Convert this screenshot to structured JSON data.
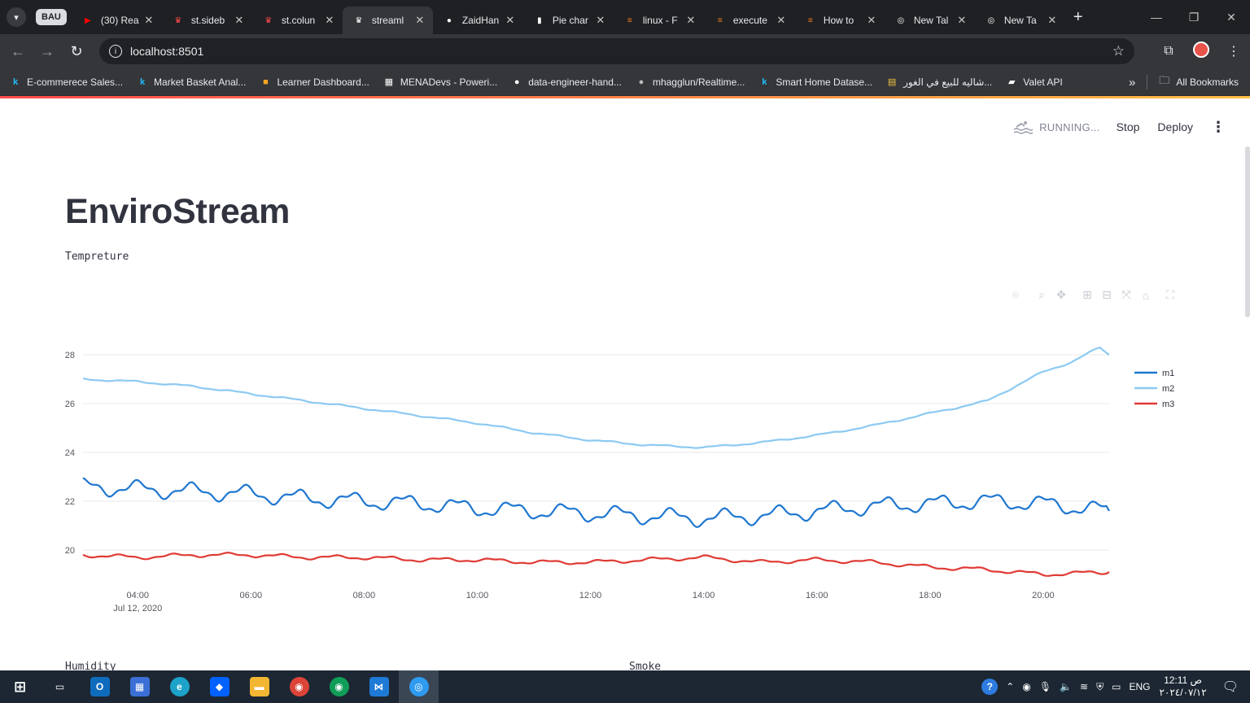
{
  "browser": {
    "group_chip": "BAU",
    "tabs": [
      {
        "label": "(30) Rea",
        "icon": "youtube-icon",
        "color": "#ff0000"
      },
      {
        "label": "st.sideb",
        "icon": "streamlit-icon",
        "color": "#ff4b4b"
      },
      {
        "label": "st.colun",
        "icon": "streamlit-icon",
        "color": "#ff4b4b"
      },
      {
        "label": "streaml",
        "icon": "streamlit-icon",
        "color": "#ffffff",
        "active": true
      },
      {
        "label": "ZaidHan",
        "icon": "github-icon",
        "color": "#ffffff"
      },
      {
        "label": "Pie char",
        "icon": "chart-icon",
        "color": "#ffffff"
      },
      {
        "label": "linux - F",
        "icon": "stackoverflow-icon",
        "color": "#f48024"
      },
      {
        "label": "execute",
        "icon": "stackoverflow-icon",
        "color": "#f48024"
      },
      {
        "label": "How to",
        "icon": "stackoverflow-icon",
        "color": "#f48024"
      },
      {
        "label": "New Tal",
        "icon": "chrome-icon",
        "color": "#ffffff"
      },
      {
        "label": "New Ta",
        "icon": "chrome-icon",
        "color": "#ffffff"
      }
    ],
    "url": "localhost:8501",
    "bookmarks": [
      {
        "label": "E-commerece Sales...",
        "icon": "kaggle-icon",
        "color": "#20beff"
      },
      {
        "label": "Market Basket Anal...",
        "icon": "kaggle-icon",
        "color": "#20beff"
      },
      {
        "label": "Learner Dashboard...",
        "icon": "box-icon",
        "color": "#f5a623"
      },
      {
        "label": "MENADevs - Poweri...",
        "icon": "menadevs-icon",
        "color": "#ffffff"
      },
      {
        "label": "data-engineer-hand...",
        "icon": "github-icon",
        "color": "#ffffff"
      },
      {
        "label": "mhagglun/Realtime...",
        "icon": "github-icon",
        "color": "#bbbbbb"
      },
      {
        "label": "Smart Home Datase...",
        "icon": "kaggle-icon",
        "color": "#20beff"
      },
      {
        "label": "شاليه للبيع في الغور...",
        "icon": "listing-icon",
        "color": "#f5c542"
      },
      {
        "label": "Valet API",
        "icon": "car-icon",
        "color": "#ffffff"
      }
    ],
    "all_bookmarks": "All Bookmarks"
  },
  "app": {
    "status": "RUNNING...",
    "stop": "Stop",
    "deploy": "Deploy",
    "title": "EnviroStream",
    "subtitle": "Tempreture",
    "next_sections": [
      "Humidity",
      "Smoke"
    ]
  },
  "chart_data": {
    "type": "line",
    "title": "",
    "xlabel": "",
    "ylabel": "",
    "x_range": [
      "2020-07-12T03:02",
      "2020-07-12T21:10"
    ],
    "ylim": [
      18.6,
      28.6
    ],
    "x_ticks": [
      "04:00",
      "06:00",
      "08:00",
      "10:00",
      "12:00",
      "14:00",
      "16:00",
      "18:00",
      "20:00"
    ],
    "x_tick_sub": "Jul 12, 2020",
    "y_ticks": [
      20,
      22,
      24,
      26,
      28
    ],
    "grid": true,
    "legend": "right",
    "series": [
      {
        "name": "m1",
        "color": "#1f77d0",
        "x": [
          "03:02",
          "04:00",
          "05:00",
          "06:00",
          "07:00",
          "08:00",
          "09:00",
          "10:00",
          "11:00",
          "12:00",
          "13:00",
          "14:00",
          "15:00",
          "16:00",
          "17:00",
          "18:00",
          "19:00",
          "20:00",
          "21:10"
        ],
        "y": [
          22.6,
          22.5,
          22.4,
          22.3,
          22.1,
          22.0,
          21.9,
          21.7,
          21.6,
          21.5,
          21.4,
          21.3,
          21.4,
          21.6,
          21.8,
          21.9,
          22.0,
          21.9,
          21.6
        ]
      },
      {
        "name": "m2",
        "color": "#8ccaf2",
        "x": [
          "03:02",
          "04:00",
          "05:00",
          "06:00",
          "07:00",
          "08:00",
          "09:00",
          "10:00",
          "11:00",
          "12:00",
          "13:00",
          "14:00",
          "15:00",
          "16:00",
          "17:00",
          "18:00",
          "19:00",
          "20:00",
          "20:30",
          "21:00",
          "21:10"
        ],
        "y": [
          27.0,
          26.9,
          26.7,
          26.4,
          26.1,
          25.8,
          25.5,
          25.2,
          24.8,
          24.5,
          24.3,
          24.2,
          24.4,
          24.7,
          25.1,
          25.6,
          26.1,
          27.3,
          27.7,
          28.3,
          28.0
        ]
      },
      {
        "name": "m3",
        "color": "#e03b35",
        "x": [
          "03:02",
          "04:00",
          "05:00",
          "06:00",
          "07:00",
          "08:00",
          "09:00",
          "10:00",
          "11:00",
          "12:00",
          "13:00",
          "14:00",
          "15:00",
          "16:00",
          "17:00",
          "18:00",
          "19:00",
          "20:00",
          "21:10"
        ],
        "y": [
          19.8,
          19.7,
          19.8,
          19.8,
          19.7,
          19.7,
          19.6,
          19.6,
          19.5,
          19.5,
          19.6,
          19.7,
          19.5,
          19.6,
          19.5,
          19.3,
          19.2,
          19.0,
          19.1
        ]
      }
    ]
  },
  "taskbar": {
    "lang": "ENG",
    "time": "12:11 ص",
    "date": "٢٠٢٤/٠٧/١٢"
  }
}
